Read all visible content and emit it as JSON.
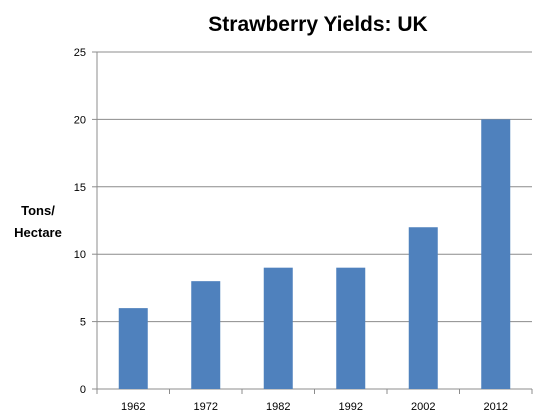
{
  "chart_data": {
    "type": "bar",
    "title": "Strawberry Yields: UK",
    "ylabel_lines": [
      "Tons/",
      "Hectare"
    ],
    "xlabel": "",
    "categories": [
      "1962",
      "1972",
      "1982",
      "1992",
      "2002",
      "2012"
    ],
    "values": [
      6,
      8,
      9,
      9,
      12,
      20
    ],
    "ylim": [
      0,
      25
    ],
    "yticks": [
      "0",
      "5",
      "10",
      "15",
      "20",
      "25"
    ],
    "grid": true,
    "legend": "none",
    "bar_color": "#4f81bd",
    "grid_color": "#8c8c8c"
  }
}
